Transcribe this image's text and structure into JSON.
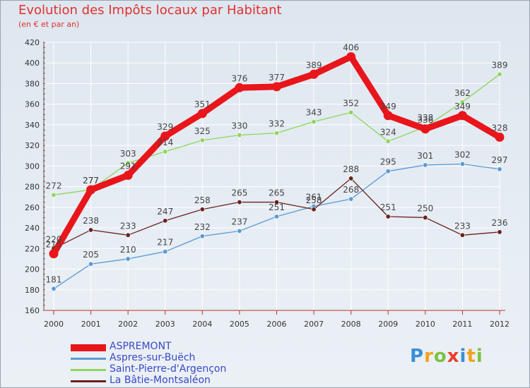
{
  "chart_data": {
    "type": "line",
    "title": "Evolution des Impôts locaux par Habitant",
    "subtitle": "(en € et par an)",
    "xlabel": "",
    "ylabel": "",
    "categories": [
      "2000",
      "2001",
      "2002",
      "2003",
      "2004",
      "2005",
      "2006",
      "2007",
      "2008",
      "2009",
      "2010",
      "2011",
      "2012"
    ],
    "ylim": [
      160,
      420
    ],
    "yticks": [
      160,
      180,
      200,
      220,
      240,
      260,
      280,
      300,
      320,
      340,
      360,
      380,
      400,
      420
    ],
    "grid": true,
    "legend_position": "bottom-left",
    "series": [
      {
        "name": "ASPREMONT",
        "color": "#e8151b",
        "values": [
          215,
          277,
          291,
          329,
          351,
          376,
          377,
          389,
          406,
          349,
          336,
          349,
          328
        ]
      },
      {
        "name": "Aspres-sur-Buëch",
        "color": "#5b9ad2",
        "values": [
          181,
          205,
          210,
          217,
          232,
          237,
          251,
          261,
          268,
          295,
          301,
          302,
          297
        ]
      },
      {
        "name": "Saint-Pierre-d'Argençon",
        "color": "#8ed65a",
        "values": [
          272,
          277,
          303,
          314,
          325,
          330,
          332,
          343,
          352,
          324,
          338,
          362,
          389
        ]
      },
      {
        "name": "La Bâtie-Montsaléon",
        "color": "#6b2020",
        "values": [
          220,
          238,
          233,
          247,
          258,
          265,
          265,
          258,
          288,
          251,
          250,
          233,
          236
        ]
      }
    ]
  },
  "legend": {
    "items": [
      "ASPREMONT",
      "Aspres-sur-Buëch",
      "Saint-Pierre-d'Argençon",
      "La Bâtie-Montsaléon"
    ]
  },
  "logo": {
    "letters": [
      "P",
      "r",
      "o",
      "x",
      "i",
      "t",
      "i"
    ]
  }
}
